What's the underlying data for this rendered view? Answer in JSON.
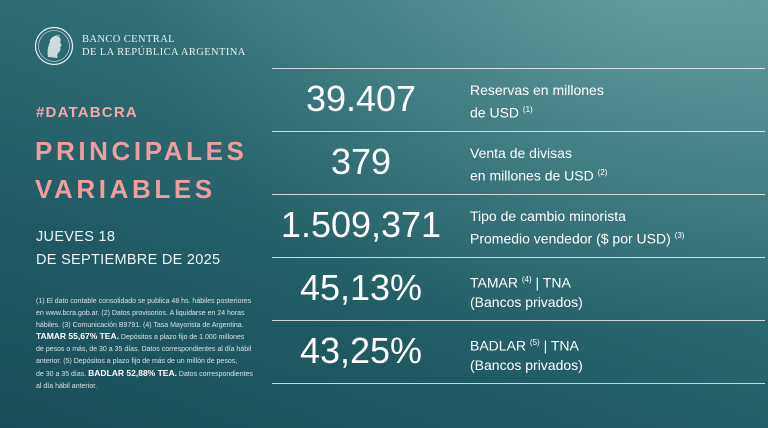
{
  "header": {
    "bank_line1": "BANCO CENTRAL",
    "bank_line2": "DE LA REPÚBLICA ARGENTINA"
  },
  "hashtag": "#DATABCRA",
  "title": {
    "line1": "PRINCIPALES",
    "line2": "VARIABLES"
  },
  "date": {
    "line1": "JUEVES 18",
    "line2": "DE SEPTIEMBRE DE 2025"
  },
  "notes": {
    "l1": "(1) El dato contable consolidado se publica 48 hs. hábiles posteriores",
    "l2": "en www.bcra.gob.ar. (2) Datos provisorios. A liquidarse en 24 horas",
    "l3": "hábiles. (3) Comunicación B9791. (4) Tasa Mayorista de Argentina.",
    "tamar_bold": "TAMAR 55,67% TEA.",
    "l4_rest": " Depósitos a plazo fijo de 1.000 millones",
    "l5": "de pesos o más, de 30 a 35 días. Datos correspondientes al día hábil",
    "l6": "anterior. (5) Depósitos a plazo fijo de más de un millón de pesos,",
    "l7_start": "de 30 a 35 días. ",
    "badlar_bold": "BADLAR 52,88% TEA.",
    "l7_rest": " Datos correspondientes",
    "l8": "al día hábil anterior."
  },
  "variables": [
    {
      "value": "39.407",
      "label1": "Reservas en millones",
      "label2": "de USD",
      "note": "(1)"
    },
    {
      "value": "379",
      "label1": "Venta de divisas",
      "label2": "en millones de USD",
      "note": "(2)"
    },
    {
      "value": "1.509,371",
      "label1": "Tipo de cambio minorista",
      "label2": "Promedio vendedor ($ por USD)",
      "note": "(3)"
    },
    {
      "value": "45,13%",
      "label1a": "TAMAR",
      "note": "(4)",
      "label1b": "| TNA",
      "label2": "(Bancos privados)"
    },
    {
      "value": "43,25%",
      "label1a": "BADLAR",
      "note": "(5)",
      "label1b": "| TNA",
      "label2": "(Bancos privados)"
    }
  ]
}
